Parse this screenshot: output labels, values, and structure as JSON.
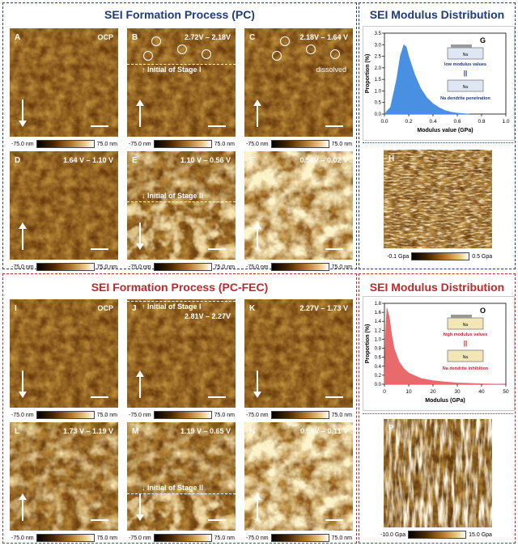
{
  "sections": {
    "pc_title": "SEI Formation Process (PC)",
    "pc_modulus_title": "SEI Modulus Distribution",
    "fec_title": "SEI Formation Process (PC-FEC)",
    "fec_modulus_title": "SEI Modulus Distribution"
  },
  "panels": [
    {
      "id": "A",
      "voltage": "OCP",
      "arrow": "down"
    },
    {
      "id": "B",
      "voltage": "2.72V – 2.18V",
      "arrow": "up",
      "stage": "↑ Initial of Stage I"
    },
    {
      "id": "C",
      "voltage": "2.18V – 1.64 V",
      "arrow": "up",
      "note": "dissolved"
    },
    {
      "id": "D",
      "voltage": "1.64 V – 1.10 V",
      "arrow": "up"
    },
    {
      "id": "E",
      "voltage": "1.10 V – 0.56 V",
      "arrow": "down",
      "stage": "↓ Initial of Stage II"
    },
    {
      "id": "F",
      "voltage": "0.56V – 0.02 V",
      "arrow": "up"
    },
    {
      "id": "I",
      "voltage": "OCP",
      "arrow": "down"
    },
    {
      "id": "J",
      "voltage": "2.81V – 2.27V",
      "arrow": "up",
      "stage": "↑ Initial of Stage I"
    },
    {
      "id": "K",
      "voltage": "2.27V – 1.73 V",
      "arrow": "down"
    },
    {
      "id": "L",
      "voltage": "1.73 V – 1.19 V",
      "arrow": "up"
    },
    {
      "id": "M",
      "voltage": "1.19 V – 0.65 V",
      "arrow": "down",
      "stage": "↓ Initial of Stage II"
    },
    {
      "id": "N",
      "voltage": "0.65V – 0.11 V",
      "arrow": "up"
    }
  ],
  "colorbar": {
    "min": "-75.0 nm",
    "max": "75.0 nm"
  },
  "modulus_maps": {
    "H": {
      "label": "H",
      "min": "-0.1 Gpa",
      "max": "0.5 Gpa"
    },
    "P": {
      "label": "P",
      "min": "-10.0 Gpa",
      "max": "15.0 Gpa"
    }
  },
  "chart_data": [
    {
      "type": "area",
      "panel": "G",
      "xlabel": "Modulus value (GPa)",
      "ylabel": "Proportion (%)",
      "xlim": [
        0.0,
        1.0
      ],
      "ylim": [
        0.0,
        3.5
      ],
      "xticks": [
        "0.0",
        "0.2",
        "0.4",
        "0.6",
        "0.8",
        "1.0"
      ],
      "yticks": [
        "0.0",
        "0.5",
        "1.0",
        "1.5",
        "2.0",
        "2.5",
        "3.0",
        "3.5"
      ],
      "x": [
        0.0,
        0.05,
        0.1,
        0.13,
        0.16,
        0.18,
        0.2,
        0.25,
        0.3,
        0.35,
        0.4,
        0.45,
        0.5,
        0.55,
        0.6,
        0.7
      ],
      "y": [
        0.0,
        0.3,
        1.5,
        2.5,
        3.0,
        2.9,
        2.5,
        1.7,
        1.1,
        0.7,
        0.45,
        0.28,
        0.15,
        0.08,
        0.04,
        0.0
      ],
      "color": "#4a90e2",
      "inset": {
        "top_label": "Na",
        "mid_label": "low modulus values",
        "sep": "||",
        "bottom_label": "Na",
        "caption": "Na dendrite penetration"
      }
    },
    {
      "type": "area",
      "panel": "O",
      "xlabel": "Modulus (GPa)",
      "ylabel": "Proportion (%)",
      "xlim": [
        0,
        50
      ],
      "ylim": [
        0.0,
        1.8
      ],
      "xticks": [
        "0",
        "10",
        "20",
        "30",
        "40",
        "50"
      ],
      "yticks": [
        "0.0",
        "0.2",
        "0.4",
        "0.6",
        "0.8",
        "1.0",
        "1.2",
        "1.4",
        "1.6",
        "1.8"
      ],
      "x": [
        0,
        0.5,
        1,
        2,
        3,
        4,
        6,
        8,
        10,
        15,
        20,
        25,
        30,
        40,
        50
      ],
      "y": [
        0.0,
        1.2,
        1.7,
        1.5,
        1.1,
        0.8,
        0.5,
        0.35,
        0.25,
        0.13,
        0.08,
        0.05,
        0.03,
        0.01,
        0.0
      ],
      "color": "#e86a6a",
      "inset": {
        "top_label": "Na",
        "mid_label": "high modulus values",
        "sep": "||",
        "bottom_label": "Na",
        "caption": "Na dendrite inhibition"
      }
    }
  ]
}
